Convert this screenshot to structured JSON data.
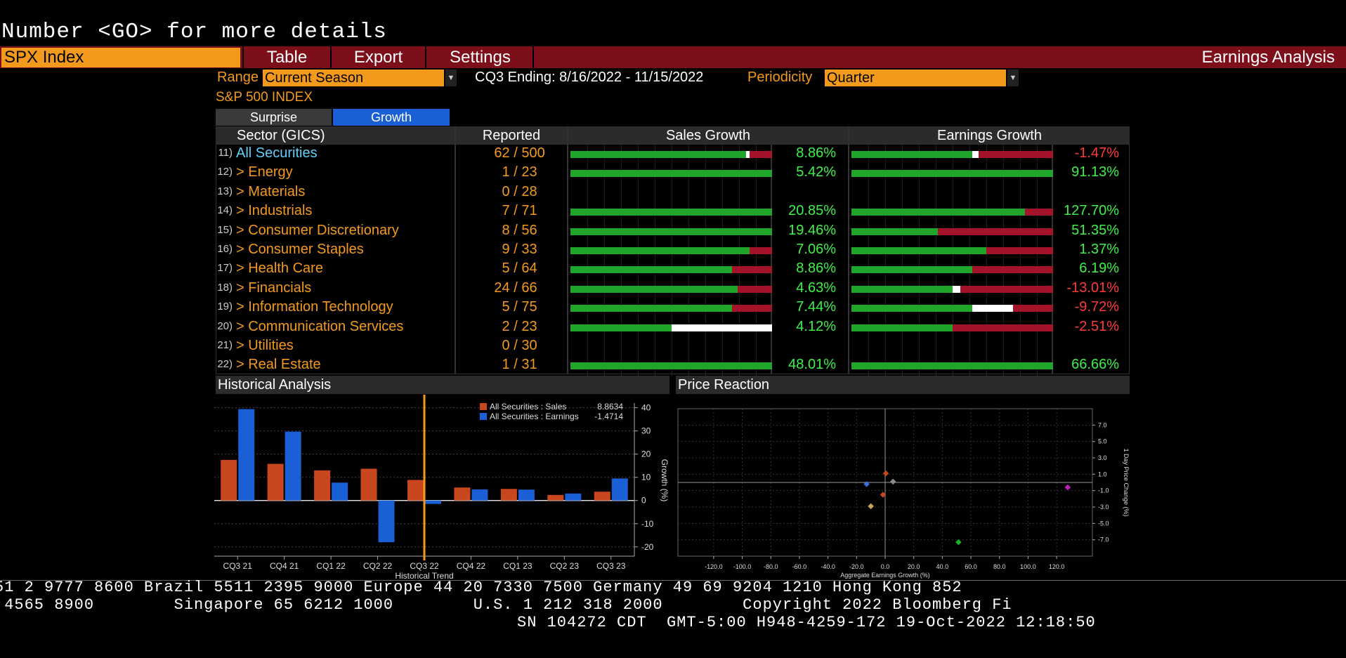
{
  "command_line": "Number <GO> for more details",
  "toolbar": {
    "ticker": "SPX Index",
    "menu": [
      "Table",
      "Export",
      "Settings"
    ],
    "title": "Earnings Analysis"
  },
  "controls": {
    "range_label": "Range",
    "range_value": "Current Season",
    "period_text": "CQ3 Ending: 8/16/2022 - 11/15/2022",
    "periodicity_label": "Periodicity",
    "periodicity_value": "Quarter"
  },
  "index_name": "S&P 500 INDEX",
  "tabs": [
    "Surprise",
    "Growth"
  ],
  "table": {
    "headers": {
      "sector": "Sector (GICS)",
      "reported": "Reported",
      "sales": "Sales Growth",
      "earnings": "Earnings Growth"
    },
    "rows": [
      {
        "num": "11)",
        "name": "All Securities",
        "reported": "62",
        "total": "500",
        "sales": "8.86%",
        "earnings": "-1.47%"
      },
      {
        "num": "12)",
        "name": "> Energy",
        "reported": "1",
        "total": "23",
        "sales": "5.42%",
        "earnings": "91.13%"
      },
      {
        "num": "13)",
        "name": "> Materials",
        "reported": "0",
        "total": "28",
        "sales": "",
        "earnings": ""
      },
      {
        "num": "14)",
        "name": "> Industrials",
        "reported": "7",
        "total": "71",
        "sales": "20.85%",
        "earnings": "127.70%"
      },
      {
        "num": "15)",
        "name": "> Consumer Discretionary",
        "reported": "8",
        "total": "56",
        "sales": "19.46%",
        "earnings": "51.35%"
      },
      {
        "num": "16)",
        "name": "> Consumer Staples",
        "reported": "9",
        "total": "33",
        "sales": "7.06%",
        "earnings": "1.37%"
      },
      {
        "num": "17)",
        "name": "> Health Care",
        "reported": "5",
        "total": "64",
        "sales": "8.86%",
        "earnings": "6.19%"
      },
      {
        "num": "18)",
        "name": "> Financials",
        "reported": "24",
        "total": "66",
        "sales": "4.63%",
        "earnings": "-13.01%"
      },
      {
        "num": "19)",
        "name": "> Information Technology",
        "reported": "5",
        "total": "75",
        "sales": "7.44%",
        "earnings": "-9.72%"
      },
      {
        "num": "20)",
        "name": "> Communication Services",
        "reported": "2",
        "total": "23",
        "sales": "4.12%",
        "earnings": "-2.51%"
      },
      {
        "num": "21)",
        "name": "> Utilities",
        "reported": "0",
        "total": "30",
        "sales": "",
        "earnings": ""
      },
      {
        "num": "22)",
        "name": "> Real Estate",
        "reported": "1",
        "total": "31",
        "sales": "48.01%",
        "earnings": "66.66%"
      }
    ],
    "bars": [
      {
        "s_green": 0.87,
        "s_white": 0.02,
        "s_red": 0.11,
        "e_green": 0.6,
        "e_white": 0.03,
        "e_red": 0.37
      },
      {
        "s_green": 1.0,
        "s_white": 0,
        "s_red": 0,
        "e_green": 1.0,
        "e_white": 0,
        "e_red": 0
      },
      {
        "s_green": 0,
        "s_white": 0,
        "s_red": 0,
        "e_green": 0,
        "e_white": 0,
        "e_red": 0
      },
      {
        "s_green": 1.0,
        "s_white": 0,
        "s_red": 0,
        "e_green": 0.86,
        "e_white": 0,
        "e_red": 0.14
      },
      {
        "s_green": 1.0,
        "s_white": 0,
        "s_red": 0,
        "e_green": 0.43,
        "e_white": 0,
        "e_red": 0.57
      },
      {
        "s_green": 0.89,
        "s_white": 0,
        "s_red": 0.11,
        "e_green": 0.67,
        "e_white": 0,
        "e_red": 0.33
      },
      {
        "s_green": 0.8,
        "s_white": 0,
        "s_red": 0.2,
        "e_green": 0.6,
        "e_white": 0,
        "e_red": 0.4
      },
      {
        "s_green": 0.83,
        "s_white": 0,
        "s_red": 0.17,
        "e_green": 0.5,
        "e_white": 0.04,
        "e_red": 0.46
      },
      {
        "s_green": 0.8,
        "s_white": 0,
        "s_red": 0.2,
        "e_green": 0.6,
        "e_white": 0.2,
        "e_red": 0.2
      },
      {
        "s_green": 0.5,
        "s_white": 0.5,
        "s_red": 0,
        "e_green": 0.5,
        "e_white": 0,
        "e_red": 0.5
      },
      {
        "s_green": 0,
        "s_white": 0,
        "s_red": 0,
        "e_green": 0,
        "e_white": 0,
        "e_red": 0
      },
      {
        "s_green": 1.0,
        "s_white": 0,
        "s_red": 0,
        "e_green": 1.0,
        "e_white": 0,
        "e_red": 0
      }
    ]
  },
  "historical": {
    "title": "Historical Analysis",
    "legend_sales": "All Securities : Sales",
    "legend_sales_value": "8.8634",
    "legend_earnings": "All Securities : Earnings",
    "legend_earnings_value": "-1.4714",
    "xlabel": "Historical Trend",
    "ylabel": "Growth (%)",
    "colors": {
      "sales": "#c8471f",
      "earnings": "#1a5fd6",
      "marker": "#f39a1c"
    }
  },
  "price_reaction": {
    "title": "Price Reaction",
    "xlabel": "Aggregate Earnings Growth (%)",
    "ylabel": "1 Day Price Change (%)"
  },
  "chart_data": [
    {
      "type": "bar",
      "categories": [
        "CQ3 21",
        "CQ4 21",
        "CQ1 22",
        "CQ2 22",
        "CQ3 22",
        "CQ4 22",
        "CQ1 23",
        "CQ2 23",
        "CQ3 23"
      ],
      "series": [
        {
          "name": "All Securities : Sales",
          "values": [
            17.5,
            15.8,
            13.0,
            13.7,
            8.86,
            5.6,
            5.0,
            2.4,
            3.8
          ]
        },
        {
          "name": "All Securities : Earnings",
          "values": [
            39.4,
            29.7,
            7.7,
            -18.0,
            -1.47,
            4.8,
            4.7,
            3.0,
            9.5
          ]
        }
      ],
      "ylim": [
        -24,
        42
      ],
      "yticks": [
        -20,
        -10,
        0,
        10,
        20,
        30,
        40
      ],
      "marker_category": "CQ3 22",
      "xlabel": "Historical Trend",
      "ylabel": "Growth (%)",
      "legend": "top-right"
    },
    {
      "type": "scatter",
      "points": [
        {
          "x": 0.5,
          "y": 1.1,
          "color": "#c8471f"
        },
        {
          "x": 5.5,
          "y": 0.1,
          "color": "#8a8a8a"
        },
        {
          "x": -13.0,
          "y": -0.2,
          "color": "#3a6fd8"
        },
        {
          "x": -1.5,
          "y": -1.5,
          "color": "#c8471f"
        },
        {
          "x": -10.0,
          "y": -2.9,
          "color": "#c9a15a"
        },
        {
          "x": 127.7,
          "y": -0.6,
          "color": "#c01fc0"
        },
        {
          "x": 51.3,
          "y": -7.3,
          "color": "#22b02a"
        }
      ],
      "xlim": [
        -145,
        145
      ],
      "ylim": [
        -9,
        9
      ],
      "xticks": [
        -120,
        -100,
        -80,
        -60,
        -40,
        -20,
        0,
        20,
        40,
        60,
        80,
        100,
        120
      ],
      "yticks": [
        -7,
        -5,
        -3,
        -1,
        1,
        3,
        5,
        7
      ],
      "xlabel": "Aggregate Earnings Growth (%)",
      "ylabel": "1 Day Price Change (%)"
    }
  ],
  "footer": {
    "line1": "51 2 9777 8600 Brazil 5511 2395 9000 Europe 44 20 7330 7500 Germany 49 69 9204 1210 Hong Kong 852",
    "line2": " 4565 8900        Singapore 65 6212 1000        U.S. 1 212 318 2000        Copyright 2022 Bloomberg Fi",
    "line3": "SN 104272 CDT  GMT-5:00 H948-4259-172 19-Oct-2022 12:18:50"
  }
}
